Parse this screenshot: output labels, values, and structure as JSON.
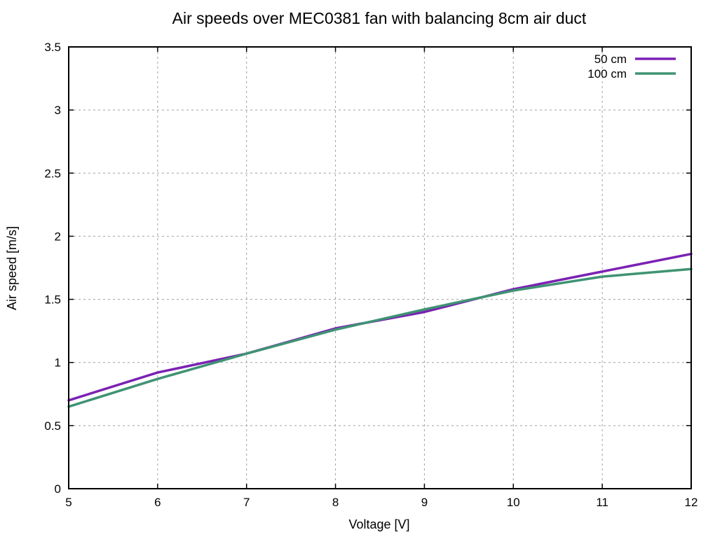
{
  "chart_data": {
    "type": "line",
    "title": "Air speeds over MEC0381 fan with balancing 8cm air duct",
    "xlabel": "Voltage [V]",
    "ylabel": "Air speed [m/s]",
    "xlim": [
      5,
      12
    ],
    "ylim": [
      0,
      3.5
    ],
    "x_ticks": [
      "5",
      "6",
      "7",
      "8",
      "9",
      "10",
      "11",
      "12"
    ],
    "y_ticks": [
      "0",
      "0.5",
      "1",
      "1.5",
      "2",
      "2.5",
      "3",
      "3.5"
    ],
    "grid": true,
    "legend_position": "top-right",
    "x": [
      5,
      6,
      7,
      8,
      9,
      10,
      11,
      12
    ],
    "series": [
      {
        "name": "50 cm",
        "color": "#7b22b3",
        "values": [
          0.7,
          0.92,
          1.07,
          1.27,
          1.4,
          1.58,
          1.72,
          1.86
        ]
      },
      {
        "name": "100 cm",
        "color": "#3f9373",
        "values": [
          0.65,
          0.87,
          1.07,
          1.26,
          1.42,
          1.57,
          1.68,
          1.74
        ]
      }
    ]
  }
}
